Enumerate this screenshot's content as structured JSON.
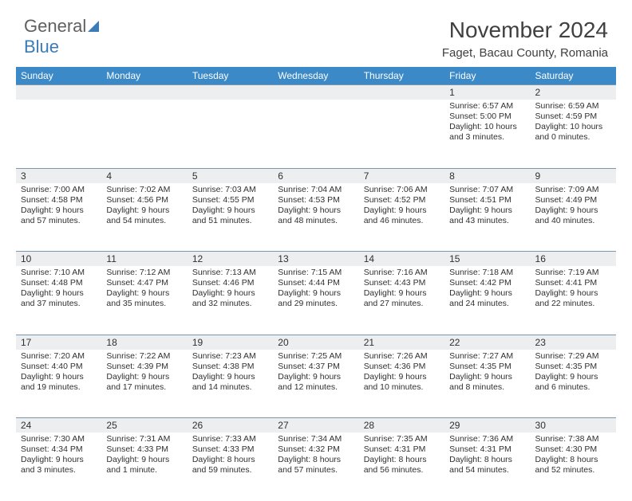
{
  "logo": {
    "text1": "General",
    "text2": "Blue"
  },
  "title": "November 2024",
  "location": "Faget, Bacau County, Romania",
  "header_bg": "#3b89c7",
  "header_fg": "#ffffff",
  "daynum_bg": "#eceeef",
  "row_border": "#7a95ad",
  "text_color": "#303030",
  "font_size_header": 12,
  "font_size_daynum": 12,
  "font_size_data": 10.5,
  "dayNames": [
    "Sunday",
    "Monday",
    "Tuesday",
    "Wednesday",
    "Thursday",
    "Friday",
    "Saturday"
  ],
  "weeks": [
    [
      null,
      null,
      null,
      null,
      null,
      {
        "n": "1",
        "sr": "6:57 AM",
        "ss": "5:00 PM",
        "dl": "10 hours and 3 minutes."
      },
      {
        "n": "2",
        "sr": "6:59 AM",
        "ss": "4:59 PM",
        "dl": "10 hours and 0 minutes."
      }
    ],
    [
      {
        "n": "3",
        "sr": "7:00 AM",
        "ss": "4:58 PM",
        "dl": "9 hours and 57 minutes."
      },
      {
        "n": "4",
        "sr": "7:02 AM",
        "ss": "4:56 PM",
        "dl": "9 hours and 54 minutes."
      },
      {
        "n": "5",
        "sr": "7:03 AM",
        "ss": "4:55 PM",
        "dl": "9 hours and 51 minutes."
      },
      {
        "n": "6",
        "sr": "7:04 AM",
        "ss": "4:53 PM",
        "dl": "9 hours and 48 minutes."
      },
      {
        "n": "7",
        "sr": "7:06 AM",
        "ss": "4:52 PM",
        "dl": "9 hours and 46 minutes."
      },
      {
        "n": "8",
        "sr": "7:07 AM",
        "ss": "4:51 PM",
        "dl": "9 hours and 43 minutes."
      },
      {
        "n": "9",
        "sr": "7:09 AM",
        "ss": "4:49 PM",
        "dl": "9 hours and 40 minutes."
      }
    ],
    [
      {
        "n": "10",
        "sr": "7:10 AM",
        "ss": "4:48 PM",
        "dl": "9 hours and 37 minutes."
      },
      {
        "n": "11",
        "sr": "7:12 AM",
        "ss": "4:47 PM",
        "dl": "9 hours and 35 minutes."
      },
      {
        "n": "12",
        "sr": "7:13 AM",
        "ss": "4:46 PM",
        "dl": "9 hours and 32 minutes."
      },
      {
        "n": "13",
        "sr": "7:15 AM",
        "ss": "4:44 PM",
        "dl": "9 hours and 29 minutes."
      },
      {
        "n": "14",
        "sr": "7:16 AM",
        "ss": "4:43 PM",
        "dl": "9 hours and 27 minutes."
      },
      {
        "n": "15",
        "sr": "7:18 AM",
        "ss": "4:42 PM",
        "dl": "9 hours and 24 minutes."
      },
      {
        "n": "16",
        "sr": "7:19 AM",
        "ss": "4:41 PM",
        "dl": "9 hours and 22 minutes."
      }
    ],
    [
      {
        "n": "17",
        "sr": "7:20 AM",
        "ss": "4:40 PM",
        "dl": "9 hours and 19 minutes."
      },
      {
        "n": "18",
        "sr": "7:22 AM",
        "ss": "4:39 PM",
        "dl": "9 hours and 17 minutes."
      },
      {
        "n": "19",
        "sr": "7:23 AM",
        "ss": "4:38 PM",
        "dl": "9 hours and 14 minutes."
      },
      {
        "n": "20",
        "sr": "7:25 AM",
        "ss": "4:37 PM",
        "dl": "9 hours and 12 minutes."
      },
      {
        "n": "21",
        "sr": "7:26 AM",
        "ss": "4:36 PM",
        "dl": "9 hours and 10 minutes."
      },
      {
        "n": "22",
        "sr": "7:27 AM",
        "ss": "4:35 PM",
        "dl": "9 hours and 8 minutes."
      },
      {
        "n": "23",
        "sr": "7:29 AM",
        "ss": "4:35 PM",
        "dl": "9 hours and 6 minutes."
      }
    ],
    [
      {
        "n": "24",
        "sr": "7:30 AM",
        "ss": "4:34 PM",
        "dl": "9 hours and 3 minutes."
      },
      {
        "n": "25",
        "sr": "7:31 AM",
        "ss": "4:33 PM",
        "dl": "9 hours and 1 minute."
      },
      {
        "n": "26",
        "sr": "7:33 AM",
        "ss": "4:33 PM",
        "dl": "8 hours and 59 minutes."
      },
      {
        "n": "27",
        "sr": "7:34 AM",
        "ss": "4:32 PM",
        "dl": "8 hours and 57 minutes."
      },
      {
        "n": "28",
        "sr": "7:35 AM",
        "ss": "4:31 PM",
        "dl": "8 hours and 56 minutes."
      },
      {
        "n": "29",
        "sr": "7:36 AM",
        "ss": "4:31 PM",
        "dl": "8 hours and 54 minutes."
      },
      {
        "n": "30",
        "sr": "7:38 AM",
        "ss": "4:30 PM",
        "dl": "8 hours and 52 minutes."
      }
    ]
  ],
  "labels": {
    "sunrise": "Sunrise:",
    "sunset": "Sunset:",
    "daylight": "Daylight:"
  }
}
